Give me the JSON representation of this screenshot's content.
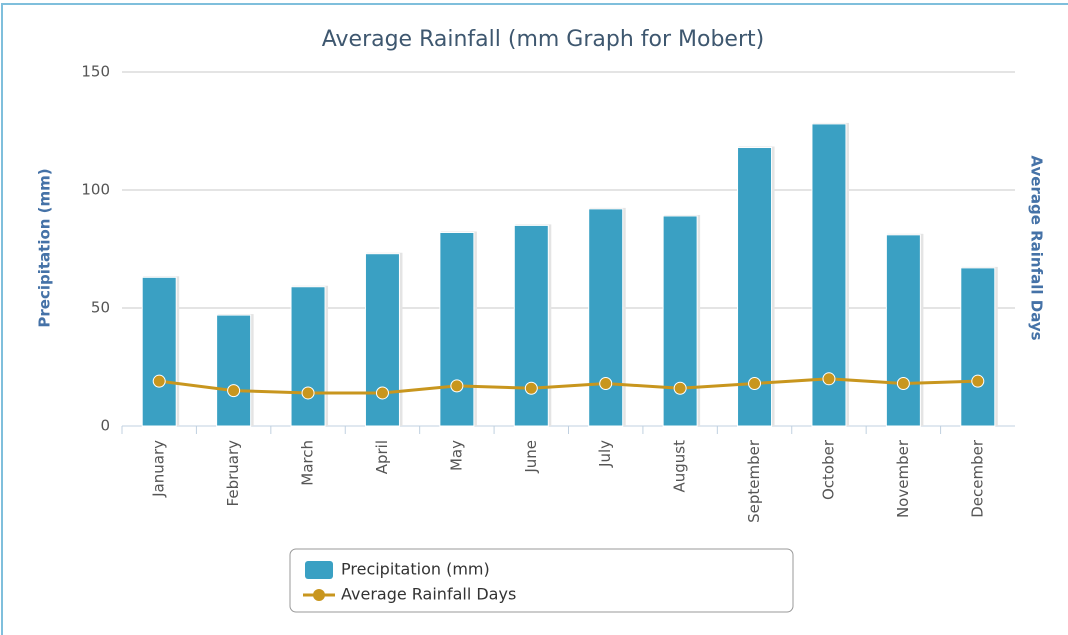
{
  "chart_data": {
    "type": "bar_line",
    "title": "Average Rainfall (mm Graph for Mobert)",
    "y_label": "Precipitation (mm)",
    "y2_label": "Average Rainfall Days",
    "categories": [
      "January",
      "February",
      "March",
      "April",
      "May",
      "June",
      "July",
      "August",
      "September",
      "October",
      "November",
      "December"
    ],
    "series": [
      {
        "name": "Precipitation (mm)",
        "type": "bar",
        "color": "#3aa0c3",
        "values": [
          63,
          47,
          59,
          73,
          82,
          85,
          92,
          89,
          118,
          128,
          81,
          67
        ]
      },
      {
        "name": "Average Rainfall Days",
        "type": "line",
        "color": "#c8961e",
        "values": [
          19,
          15,
          14,
          14,
          17,
          16,
          18,
          16,
          18,
          20,
          18,
          19
        ]
      }
    ],
    "ylim": [
      0,
      150
    ],
    "yticks": [
      0,
      50,
      100,
      150
    ],
    "grid": true
  }
}
